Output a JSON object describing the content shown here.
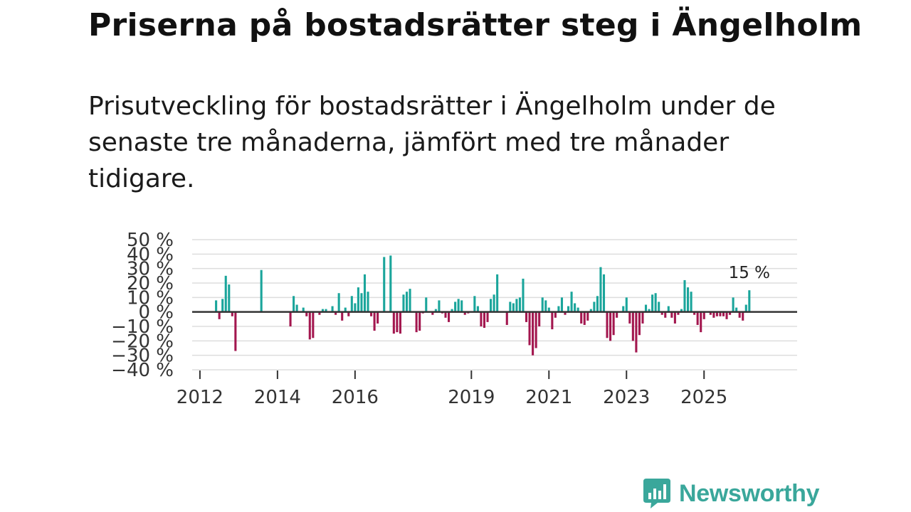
{
  "title": "Priserna på bostadsrätter steg i Ängelholm",
  "subtitle": "Prisutveckling för bostadsrätter i Ängelholm under de senaste tre månaderna, jämfört med tre månader tidigare.",
  "brand": {
    "name": "Newsworthy",
    "logo_icon": "newsworthy-chart-bubble-icon"
  },
  "colors": {
    "positive": "#1aa59b",
    "negative": "#a3174f",
    "grid": "#dddddd",
    "zero_line": "#333333"
  },
  "chart_data": {
    "type": "bar",
    "title": "",
    "xlabel": "",
    "ylabel": "",
    "ylim": [
      -40,
      50
    ],
    "y_ticks": [
      {
        "value": 50,
        "label": "50 %"
      },
      {
        "value": 40,
        "label": "40 %"
      },
      {
        "value": 30,
        "label": "30 %"
      },
      {
        "value": 20,
        "label": "20 %"
      },
      {
        "value": 10,
        "label": "10 %"
      },
      {
        "value": 0,
        "label": "0 %"
      },
      {
        "value": -10,
        "label": "−10 %"
      },
      {
        "value": -20,
        "label": "−20 %"
      },
      {
        "value": -30,
        "label": "−30 %"
      },
      {
        "value": -40,
        "label": "−40 %"
      }
    ],
    "x_ticks": [
      {
        "value": 2012,
        "label": "2012"
      },
      {
        "value": 2014,
        "label": "2014"
      },
      {
        "value": 2016,
        "label": "2016"
      },
      {
        "value": 2019,
        "label": "2019"
      },
      {
        "value": 2021,
        "label": "2021"
      },
      {
        "value": 2023,
        "label": "2023"
      },
      {
        "value": 2025,
        "label": "2025"
      }
    ],
    "x_range": [
      2011.8,
      2027.4
    ],
    "series_start": 2012.417,
    "months_per_bar": 1,
    "values": [
      8,
      -5,
      9,
      25,
      19,
      -3,
      -27,
      0,
      0,
      0,
      0,
      0,
      0,
      0,
      29,
      0,
      0,
      0,
      0,
      0,
      0,
      0,
      0,
      -10,
      11,
      5,
      0,
      3,
      -3,
      -19,
      -18,
      0,
      -2,
      2,
      2,
      0,
      4,
      -2,
      13,
      -6,
      3,
      -3,
      11,
      6,
      17,
      13,
      26,
      14,
      -3,
      -13,
      -8,
      0,
      38,
      0,
      39,
      -15,
      -14,
      -15,
      12,
      14,
      16,
      0,
      -14,
      -13,
      -1,
      10,
      0,
      -2,
      2,
      8,
      -1,
      -4,
      -7,
      2,
      7,
      9,
      8,
      -2,
      -1,
      0,
      11,
      4,
      -10,
      -11,
      -7,
      9,
      12,
      26,
      0,
      0,
      -9,
      7,
      6,
      9,
      10,
      23,
      -7,
      -23,
      -30,
      -25,
      -10,
      10,
      8,
      3,
      -12,
      -4,
      4,
      10,
      -2,
      4,
      14,
      6,
      3,
      -8,
      -9,
      -6,
      2,
      7,
      11,
      31,
      26,
      -18,
      -20,
      -16,
      -4,
      0,
      4,
      10,
      -8,
      -20,
      -28,
      -16,
      -8,
      5,
      2,
      12,
      13,
      7,
      -2,
      -4,
      4,
      -4,
      -8,
      -2,
      2,
      22,
      17,
      14,
      -2,
      -9,
      -14,
      -5,
      0,
      -2,
      -4,
      -3,
      -3,
      -3,
      -5,
      -2,
      10,
      3,
      -4,
      -6,
      5,
      15
    ],
    "annotation": {
      "text": "15 %",
      "value": 15
    }
  }
}
